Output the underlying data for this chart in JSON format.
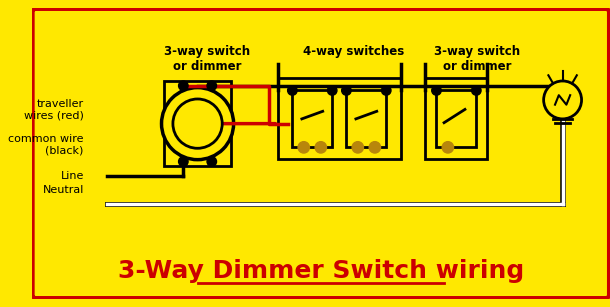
{
  "bg_color": "#FFE800",
  "border_color": "#CC0000",
  "title": "3-Way Dimmer Switch wiring",
  "title_color": "#CC0000",
  "title_fontsize": 18,
  "label_traveller": "traveller\nwires (red)",
  "label_common": "common wire\n(black)",
  "label_line": "Line",
  "label_neutral": "Neutral",
  "label_sw1": "3-way switch\nor dimmer",
  "label_sw2": "4-way switches",
  "label_sw3": "3-way switch\nor dimmer",
  "wire_black": "#000000",
  "wire_red": "#CC0000",
  "wire_white": "#FFFFFF",
  "switch_fill": "#FFE800",
  "switch_border": "#000000",
  "terminal_color": "#B8860B"
}
